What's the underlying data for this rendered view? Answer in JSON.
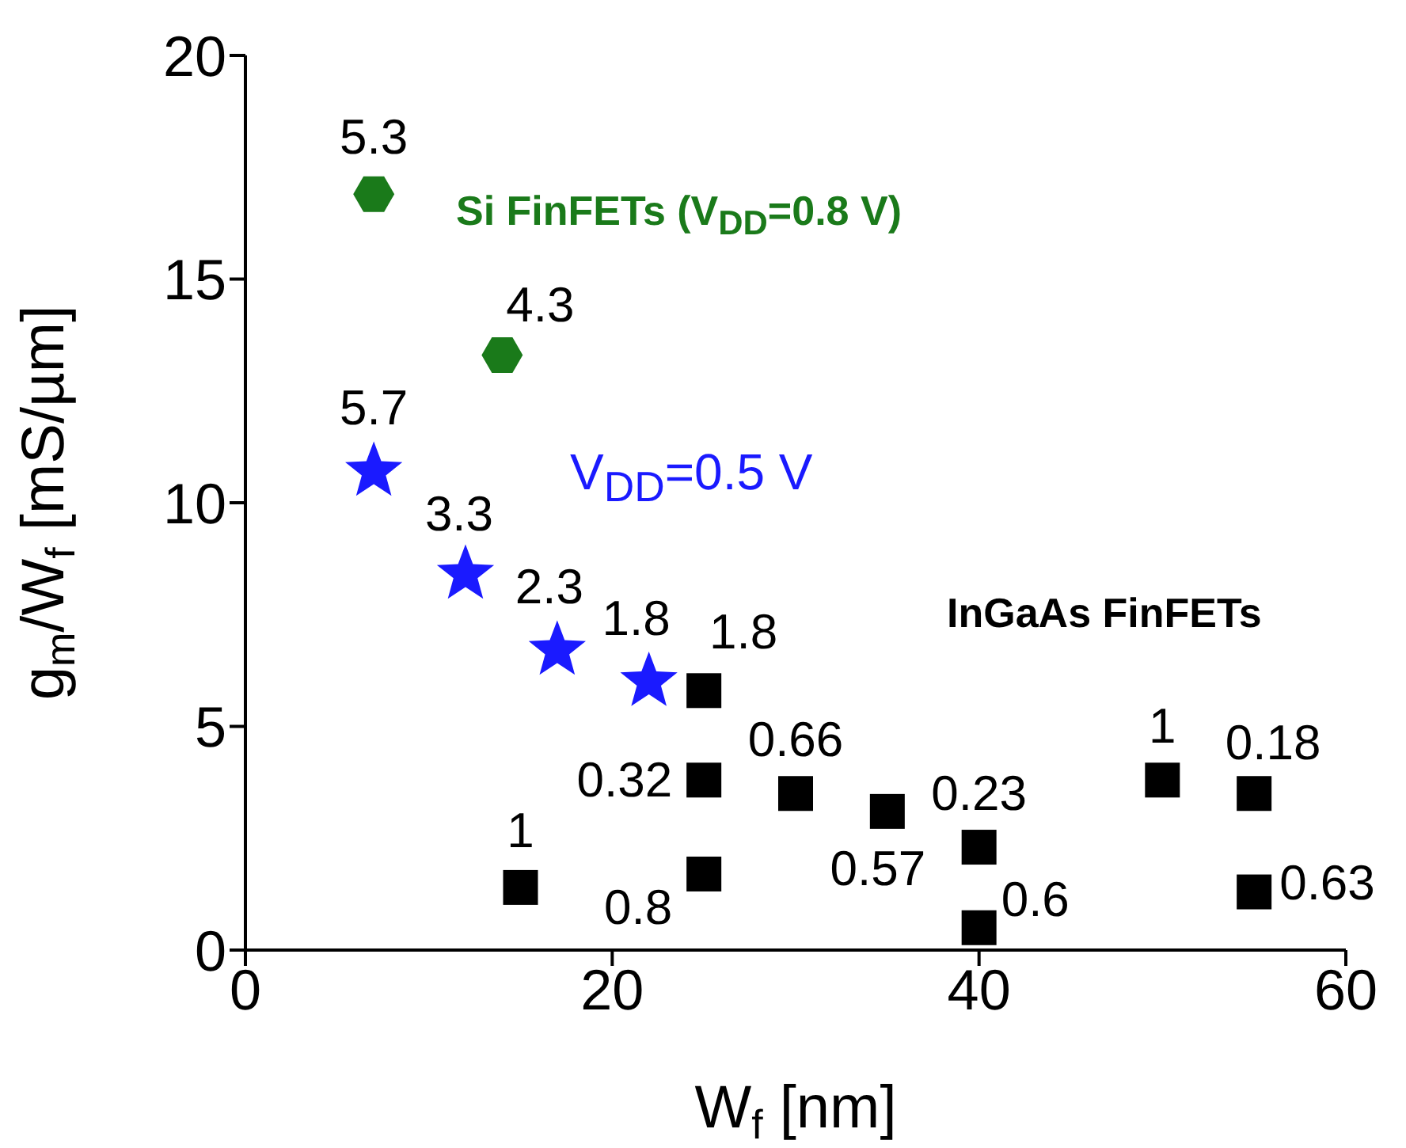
{
  "chart_data": {
    "type": "scatter",
    "xlabel": "W$_{f}$ [nm]",
    "ylabel": "g$_{m}$/W$_{f}$ [mS/µm]",
    "xlim": [
      0,
      60
    ],
    "xticks": [
      0,
      20,
      40,
      60
    ],
    "ylim": [
      0,
      20
    ],
    "yticks": [
      0,
      5,
      10,
      15,
      20
    ],
    "series": [
      {
        "name": "Si FinFETs (V$_{DD}$=0.8 V)",
        "color": "#1a7a1a",
        "x": [
          7,
          14
        ],
        "values": [
          16.9,
          13.3
        ]
      },
      {
        "name": "V$_{DD}$=0.5 V",
        "color": "#1a1aff",
        "marker": "star",
        "x": [
          7,
          12,
          17,
          22
        ],
        "values": [
          10.7,
          8.4,
          6.7,
          6.0
        ]
      },
      {
        "name": "InGaAs FinFETs",
        "color": "#000000",
        "marker": "square",
        "x": [
          25,
          25,
          25,
          15,
          30,
          35,
          40,
          40,
          50,
          55,
          55
        ],
        "values": [
          5.8,
          3.8,
          1.7,
          1.4,
          3.5,
          3.1,
          2.3,
          0.5,
          3.8,
          3.5,
          1.3
        ]
      }
    ],
    "annotations": [
      {
        "text": "5.3",
        "x": 7,
        "y": 16.9
      },
      {
        "text": "4.3",
        "x": 14,
        "y": 13.3
      },
      {
        "text": "5.7",
        "x": 7,
        "y": 10.7
      },
      {
        "text": "3.3",
        "x": 12,
        "y": 8.4
      },
      {
        "text": "2.3",
        "x": 17,
        "y": 6.7
      },
      {
        "text": "1.8",
        "x": 22,
        "y": 6.0
      },
      {
        "text": "1.8",
        "x": 25,
        "y": 5.8
      },
      {
        "text": "0.32",
        "x": 25,
        "y": 3.8
      },
      {
        "text": "0.8",
        "x": 25,
        "y": 1.7
      },
      {
        "text": "1",
        "x": 15,
        "y": 1.4
      },
      {
        "text": "0.66",
        "x": 30,
        "y": 3.5
      },
      {
        "text": "0.57",
        "x": 35,
        "y": 3.1
      },
      {
        "text": "0.23",
        "x": 40,
        "y": 2.3
      },
      {
        "text": "0.6",
        "x": 40,
        "y": 0.5
      },
      {
        "text": "1",
        "x": 50,
        "y": 3.8
      },
      {
        "text": "0.18",
        "x": 55,
        "y": 3.5
      },
      {
        "text": "0.63",
        "x": 55,
        "y": 1.3
      }
    ]
  }
}
